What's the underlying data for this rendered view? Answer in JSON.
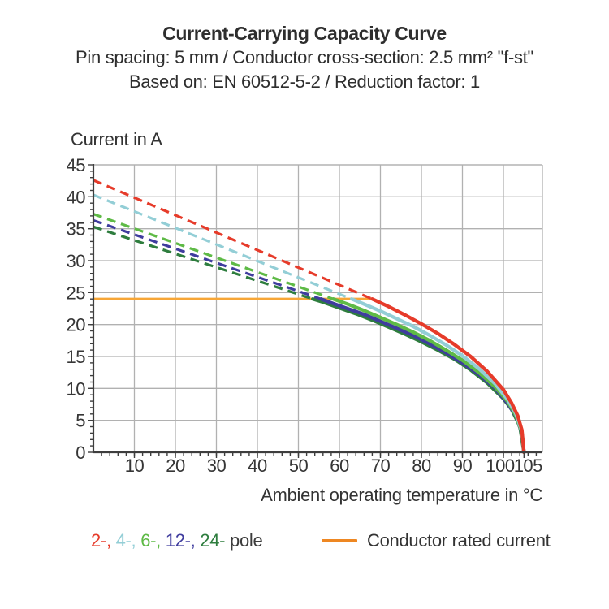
{
  "header": {
    "title": "Current-Carrying Capacity Curve",
    "subtitle1": "Pin spacing: 5 mm / Conductor cross-section: 2.5 mm² \"f-st\"",
    "subtitle2": "Based on: EN 60512-5-2 / Reduction factor: 1"
  },
  "chart_data": {
    "type": "line",
    "title": "Current-Carrying Capacity Curve",
    "xlabel": "Ambient operating temperature in °C",
    "ylabel": "Current in A",
    "xlim": [
      0,
      109.5
    ],
    "ylim": [
      0,
      45
    ],
    "xticks": [
      10,
      20,
      30,
      40,
      50,
      60,
      70,
      80,
      90,
      100,
      105
    ],
    "yticks": [
      0,
      5,
      10,
      15,
      20,
      25,
      30,
      35,
      40,
      45
    ],
    "minor_x_step": 2,
    "minor_y_step": 1,
    "grid": true,
    "legend_position": "bottom",
    "style": {
      "grid_color": "#b1b1b1",
      "axis_color": "#3e3e3e",
      "text_color": "#363636"
    },
    "rated_current": {
      "value": 24,
      "x_start": 0,
      "x_end": 68,
      "label": "Conductor rated current",
      "chart_color": "#F7A637",
      "legend_color": "#EE8722"
    },
    "legend_separator": ", ",
    "legend_pole_suffix": " pole",
    "series": [
      {
        "name": "2-pole",
        "legend_label": "2-",
        "color": "#E63B2A",
        "dashed": [
          [
            0,
            42.6
          ],
          [
            68,
            24
          ]
        ],
        "solid": [
          [
            68,
            24
          ],
          [
            72,
            22.8
          ],
          [
            76,
            21.5
          ],
          [
            80,
            20.1
          ],
          [
            84,
            18.6
          ],
          [
            88,
            16.9
          ],
          [
            92,
            15.0
          ],
          [
            96,
            12.7
          ],
          [
            100,
            9.8
          ],
          [
            102,
            7.7
          ],
          [
            103.5,
            5.7
          ],
          [
            104.5,
            3.5
          ],
          [
            105,
            0
          ]
        ]
      },
      {
        "name": "4-pole",
        "legend_label": "4-",
        "color": "#93CED6",
        "dashed": [
          [
            0,
            40.3
          ],
          [
            63,
            24
          ]
        ],
        "solid": [
          [
            63,
            24
          ],
          [
            66,
            23.2
          ],
          [
            70,
            22.1
          ],
          [
            74,
            20.9
          ],
          [
            78,
            19.7
          ],
          [
            82,
            18.3
          ],
          [
            86,
            16.8
          ],
          [
            90,
            15.1
          ],
          [
            94,
            13.1
          ],
          [
            98,
            10.7
          ],
          [
            101,
            8.3
          ],
          [
            103,
            6.1
          ],
          [
            104.5,
            3.3
          ],
          [
            105,
            0
          ]
        ]
      },
      {
        "name": "6-pole",
        "legend_label": "6-",
        "color": "#5EBA46",
        "dashed": [
          [
            0,
            37.3
          ],
          [
            58.5,
            24
          ]
        ],
        "solid": [
          [
            58.5,
            24
          ],
          [
            62,
            23.2
          ],
          [
            66,
            22.2
          ],
          [
            70,
            21.1
          ],
          [
            74,
            20.0
          ],
          [
            78,
            18.8
          ],
          [
            82,
            17.5
          ],
          [
            86,
            16.0
          ],
          [
            90,
            14.4
          ],
          [
            94,
            12.5
          ],
          [
            98,
            10.2
          ],
          [
            101,
            8.0
          ],
          [
            103,
            5.8
          ],
          [
            104.5,
            3.1
          ],
          [
            105,
            0
          ]
        ]
      },
      {
        "name": "12-pole",
        "legend_label": "12-",
        "color": "#3F3C9E",
        "dashed": [
          [
            0,
            36.3
          ],
          [
            55.5,
            24
          ]
        ],
        "solid": [
          [
            55.5,
            24
          ],
          [
            58,
            23.4
          ],
          [
            62,
            22.5
          ],
          [
            66,
            21.6
          ],
          [
            70,
            20.5
          ],
          [
            74,
            19.4
          ],
          [
            78,
            18.3
          ],
          [
            82,
            17.0
          ],
          [
            86,
            15.6
          ],
          [
            90,
            14.0
          ],
          [
            94,
            12.2
          ],
          [
            98,
            10.0
          ],
          [
            101,
            7.7
          ],
          [
            103,
            5.7
          ],
          [
            104.5,
            3.0
          ],
          [
            105,
            0
          ]
        ]
      },
      {
        "name": "24-pole",
        "legend_label": "24-",
        "color": "#2E7D3E",
        "dashed": [
          [
            0,
            35.3
          ],
          [
            53.5,
            24
          ]
        ],
        "solid": [
          [
            53.5,
            24
          ],
          [
            56,
            23.5
          ],
          [
            60,
            22.6
          ],
          [
            64,
            21.7
          ],
          [
            68,
            20.7
          ],
          [
            72,
            19.6
          ],
          [
            76,
            18.5
          ],
          [
            80,
            17.3
          ],
          [
            84,
            16.0
          ],
          [
            88,
            14.6
          ],
          [
            92,
            12.9
          ],
          [
            96,
            10.9
          ],
          [
            100,
            8.4
          ],
          [
            102,
            6.7
          ],
          [
            104,
            4.1
          ],
          [
            105,
            0
          ]
        ]
      }
    ]
  }
}
